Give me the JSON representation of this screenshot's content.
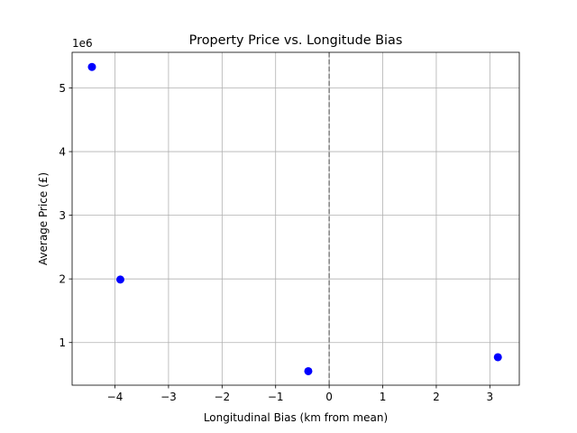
{
  "chart_data": {
    "type": "scatter",
    "title": "Property Price vs. Longitude Bias",
    "xlabel": "Longitudinal Bias (km from mean)",
    "ylabel": "Average Price (£)",
    "y_offset_label": "1e6",
    "xlim": [
      -4.8,
      3.55
    ],
    "ylim": [
      0.33,
      5.56
    ],
    "y_scale_note": "y values in units of 1e6",
    "x_ticks": [
      -4,
      -3,
      -2,
      -1,
      0,
      1,
      2,
      3
    ],
    "x_tick_labels": [
      "−4",
      "−3",
      "−2",
      "−1",
      "0",
      "1",
      "2",
      "3"
    ],
    "y_ticks": [
      1,
      2,
      3,
      4,
      5
    ],
    "y_tick_labels": [
      "1",
      "2",
      "3",
      "4",
      "5"
    ],
    "grid": true,
    "reference_line": {
      "x": 0,
      "style": "dashed",
      "color": "#808080"
    },
    "marker_color": "#0000ff",
    "points": [
      {
        "x": -4.43,
        "y": 5.33
      },
      {
        "x": -3.9,
        "y": 1.99
      },
      {
        "x": -0.39,
        "y": 0.55
      },
      {
        "x": 3.15,
        "y": 0.77
      }
    ]
  }
}
